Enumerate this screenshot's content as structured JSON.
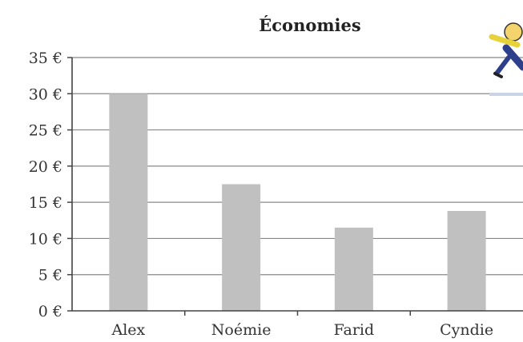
{
  "chart_data": {
    "type": "bar",
    "title": "Économies",
    "categories": [
      "Alex",
      "Noémie",
      "Farid",
      "Cyndie"
    ],
    "values": [
      30,
      17.5,
      11.5,
      13.8
    ],
    "ylim": [
      0,
      35
    ],
    "yticks": [
      "0 €",
      "5 €",
      "10 €",
      "15 €",
      "20 €",
      "25 €",
      "30 €",
      "35 €"
    ],
    "xlabel": "",
    "ylabel": "",
    "grid": true,
    "bar_color": "#c0c0c0",
    "grid_color": "#888888"
  },
  "decor": {
    "icon": "running-person-icon"
  }
}
